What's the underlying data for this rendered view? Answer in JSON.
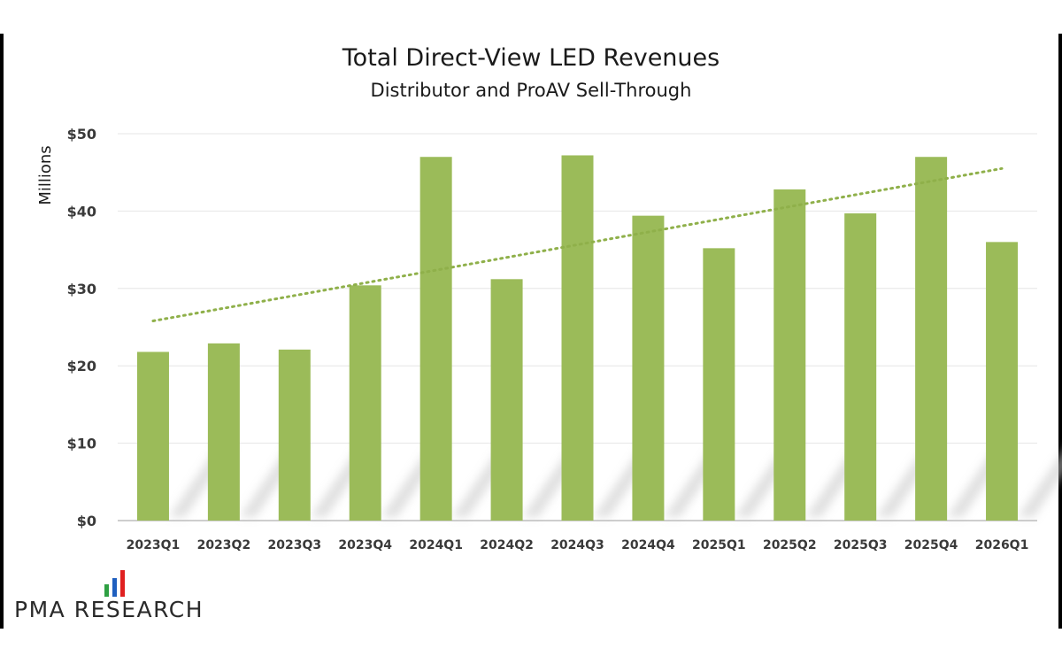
{
  "chart_data": {
    "type": "bar",
    "title": "Total Direct-View LED Revenues",
    "subtitle": "Distributor and ProAV Sell-Through",
    "ylabel": "Millions",
    "xlabel": "",
    "ylim": [
      0,
      50
    ],
    "yticks": [
      0,
      10,
      20,
      30,
      40,
      50
    ],
    "ytick_labels": [
      "$0",
      "$10",
      "$20",
      "$30",
      "$40",
      "$50"
    ],
    "categories": [
      "2023Q1",
      "2023Q2",
      "2023Q3",
      "2023Q4",
      "2024Q1",
      "2024Q2",
      "2024Q3",
      "2024Q4",
      "2025Q1",
      "2025Q2",
      "2025Q3",
      "2025Q4",
      "2026Q1"
    ],
    "values": [
      21.8,
      22.9,
      22.1,
      30.4,
      47.0,
      31.2,
      47.2,
      39.4,
      35.2,
      42.8,
      39.7,
      47.0,
      36.0
    ],
    "trendline": {
      "type": "linear",
      "style": "dotted",
      "start": 25.8,
      "end": 45.5
    },
    "grid": true,
    "colors": {
      "bar": "#9bbb59",
      "trend": "#8fb04a",
      "grid": "#e6e6e6"
    }
  },
  "logo": {
    "text": "PMA RESEARCH",
    "bar_colors": [
      "#2ea043",
      "#1f5fbf",
      "#e02020"
    ]
  }
}
